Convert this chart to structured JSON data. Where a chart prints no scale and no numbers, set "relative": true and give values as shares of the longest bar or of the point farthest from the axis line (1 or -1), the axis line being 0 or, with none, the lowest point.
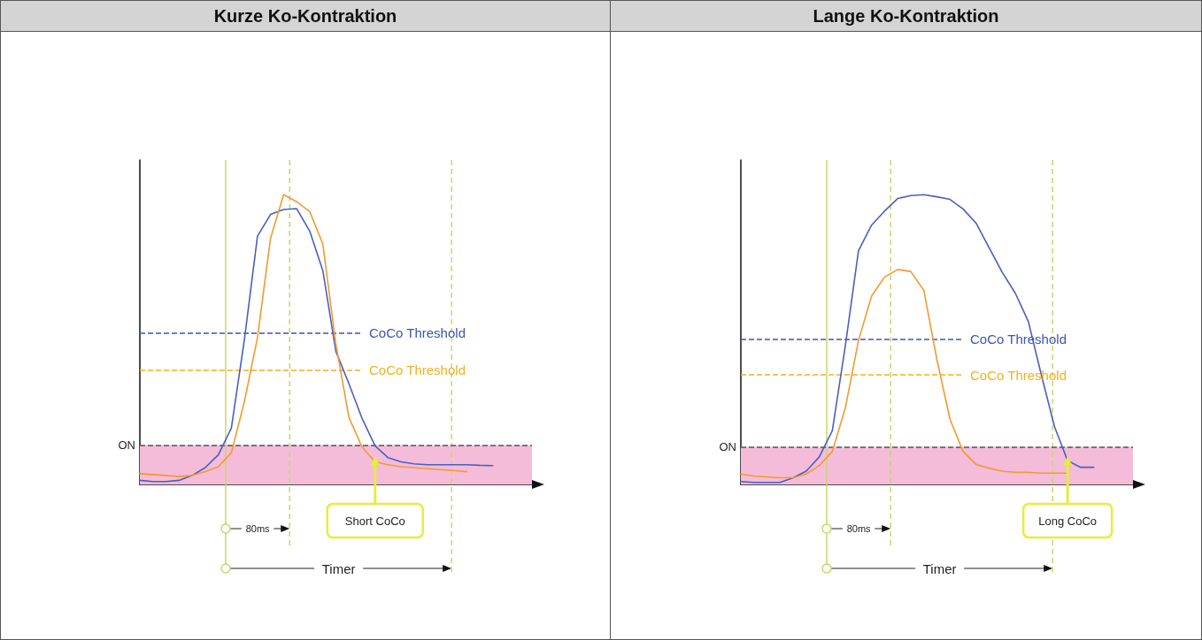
{
  "chart_data": [
    {
      "type": "line",
      "title": "Kurze Ko-Kontraktion",
      "relative": true,
      "marker": "none",
      "line_style": "solid",
      "grid": false,
      "categories": [
        null,
        null,
        null,
        null,
        null,
        null,
        null,
        null,
        null,
        null,
        null,
        null,
        null,
        null,
        null,
        null,
        null,
        null,
        null,
        null,
        null,
        null,
        null,
        null,
        null,
        null,
        null,
        null,
        null,
        null,
        null
      ],
      "series": [
        {
          "color": "#4a5fc1",
          "values": [
            0.014,
            0.01,
            0.01,
            0.014,
            0.031,
            0.058,
            0.102,
            0.194,
            0.5,
            0.857,
            0.932,
            0.949,
            0.952,
            0.874,
            0.738,
            0.459,
            0.347,
            0.228,
            0.133,
            0.092,
            0.078,
            0.071,
            0.068,
            0.068,
            0.068,
            0.068,
            0.066,
            0.065,
            null,
            null,
            null
          ]
        },
        {
          "color": "#f39a2e",
          "values": [
            0.037,
            0.034,
            0.031,
            0.027,
            0.031,
            0.044,
            0.061,
            0.109,
            0.286,
            0.507,
            0.85,
            1,
            0.976,
            0.942,
            0.83,
            0.483,
            0.231,
            0.129,
            0.078,
            0.068,
            0.061,
            0.058,
            0.054,
            0.051,
            0.048,
            0.044,
            null,
            null,
            null,
            null,
            null
          ]
        }
      ],
      "ref_lines": [
        {
          "axis": "y",
          "value": 0.136,
          "label": "ON",
          "color": "#555555",
          "line_style": "dashed"
        },
        {
          "axis": "y",
          "value": 0.524,
          "label": "CoCo Threshold",
          "color": "#3a55b4",
          "line_style": "dashed"
        },
        {
          "axis": "y",
          "value": 0.395,
          "label": "CoCo Threshold",
          "color": "#f2b01d",
          "line_style": "dashed"
        }
      ],
      "bands": [
        {
          "axis": "y",
          "from": 0,
          "to": 0.136,
          "color": "#f4bcd9"
        }
      ],
      "annotations": [
        "80ms",
        "Short CoCo",
        "Timer"
      ]
    },
    {
      "type": "line",
      "title": "Lange Ko-Kontraktion",
      "relative": true,
      "marker": "none",
      "line_style": "solid",
      "grid": false,
      "categories": [
        null,
        null,
        null,
        null,
        null,
        null,
        null,
        null,
        null,
        null,
        null,
        null,
        null,
        null,
        null,
        null,
        null,
        null,
        null,
        null,
        null,
        null,
        null,
        null,
        null,
        null,
        null,
        null,
        null,
        null,
        null
      ],
      "series": [
        {
          "color": "#4a5fc1",
          "values": [
            0.01,
            0.007,
            0.007,
            0.007,
            0.023,
            0.046,
            0.095,
            0.186,
            0.48,
            0.807,
            0.895,
            0.944,
            0.987,
            0.997,
            1,
            0.993,
            0.984,
            0.951,
            0.902,
            0.817,
            0.732,
            0.66,
            0.562,
            0.376,
            0.199,
            0.082,
            0.059,
            0.059,
            null,
            null,
            null
          ]
        },
        {
          "color": "#f39a2e",
          "values": [
            0.036,
            0.029,
            0.026,
            0.023,
            0.023,
            0.036,
            0.065,
            0.114,
            0.265,
            0.497,
            0.65,
            0.716,
            0.742,
            0.735,
            0.67,
            0.431,
            0.225,
            0.114,
            0.069,
            0.056,
            0.046,
            0.042,
            0.042,
            0.039,
            0.039,
            0.039,
            null,
            null,
            null,
            null,
            null
          ]
        }
      ],
      "ref_lines": [
        {
          "axis": "y",
          "value": 0.13,
          "label": "ON",
          "color": "#555555",
          "line_style": "dashed"
        },
        {
          "axis": "y",
          "value": 0.502,
          "label": "CoCo Threshold",
          "color": "#3a55b4",
          "line_style": "dashed"
        },
        {
          "axis": "y",
          "value": 0.378,
          "label": "CoCo Threshold",
          "color": "#f2b01d",
          "line_style": "dashed"
        }
      ],
      "bands": [
        {
          "axis": "y",
          "from": 0,
          "to": 0.13,
          "color": "#f4bcd9"
        }
      ],
      "annotations": [
        "80ms",
        "Long CoCo",
        "Timer"
      ]
    }
  ]
}
